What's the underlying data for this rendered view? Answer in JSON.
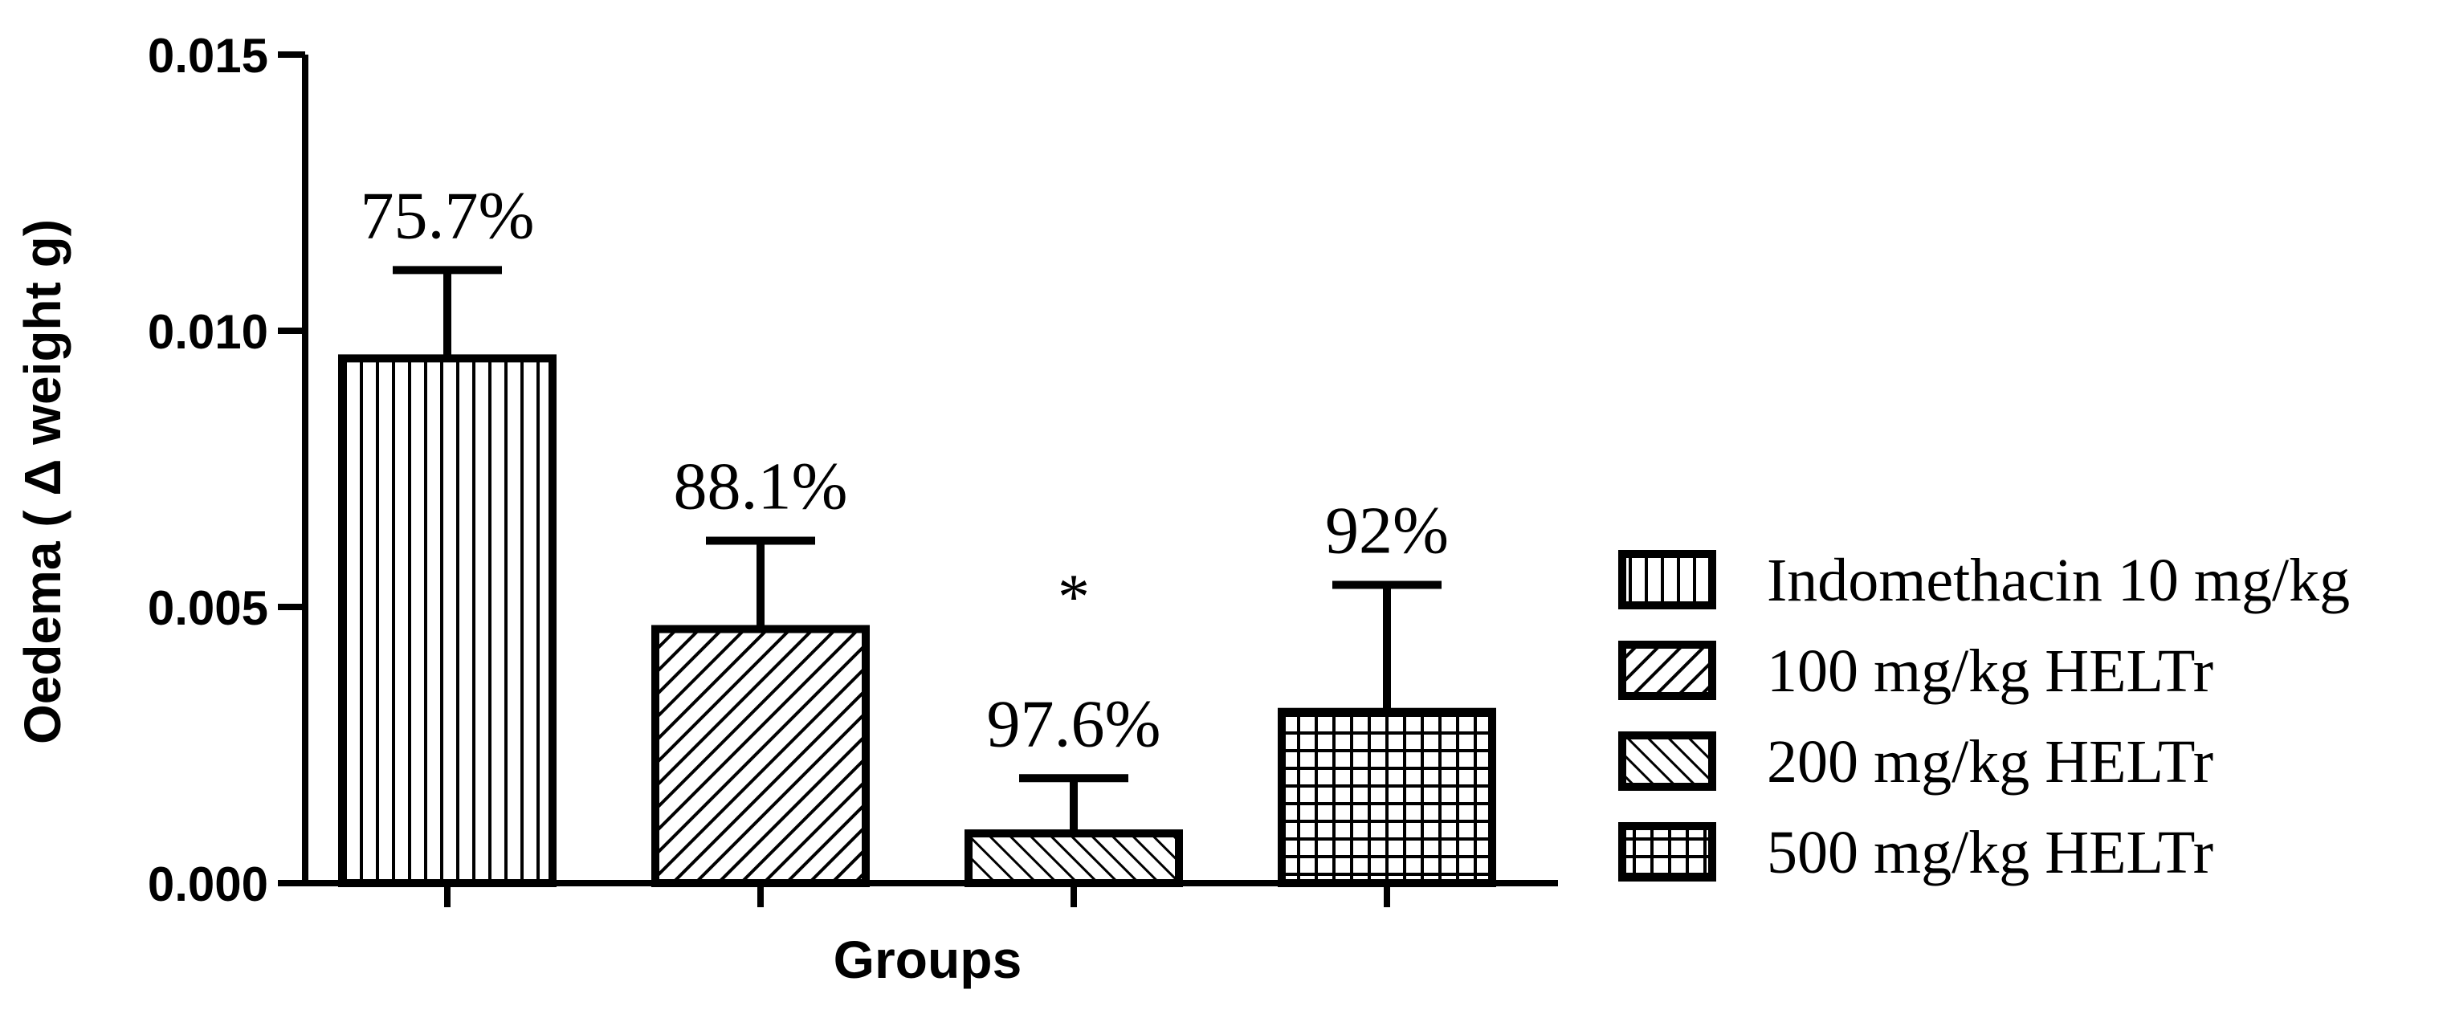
{
  "chart_data": {
    "type": "bar",
    "xlabel": "Groups",
    "ylabel": "Oedema ( Δ weight g)",
    "ylim": [
      0,
      0.015
    ],
    "yticks": [
      0.0,
      0.005,
      0.01,
      0.015
    ],
    "ytick_labels": [
      "0.000",
      "0.005",
      "0.010",
      "0.015"
    ],
    "grid": false,
    "legend_position": "right",
    "series": [
      {
        "name": "Indomethacin 10 mg/kg",
        "value": 0.0095,
        "error": 0.0016,
        "label": "75.7%",
        "significance": "",
        "pattern": "vertical-lines"
      },
      {
        "name": "100 mg/kg HELTr",
        "value": 0.0046,
        "error": 0.0016,
        "label": "88.1%",
        "significance": "",
        "pattern": "diagonal-up"
      },
      {
        "name": "200 mg/kg HELTr",
        "value": 0.0009,
        "error": 0.001,
        "label": "97.6%",
        "significance": "*",
        "pattern": "diagonal-down"
      },
      {
        "name": "500 mg/kg HELTr",
        "value": 0.0031,
        "error": 0.0023,
        "label": "92%",
        "significance": "",
        "pattern": "grid"
      }
    ]
  }
}
